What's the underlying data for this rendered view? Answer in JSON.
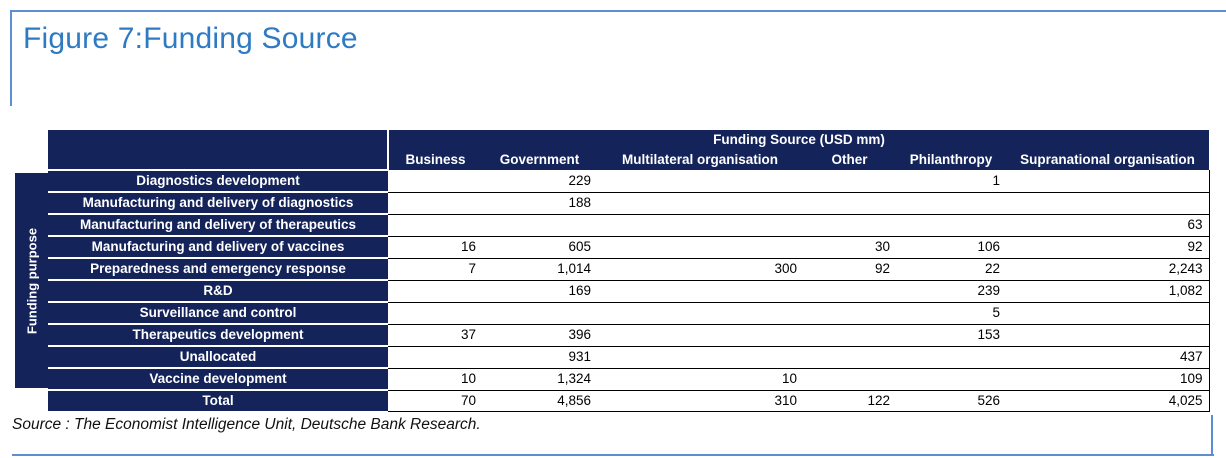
{
  "figure": {
    "title": "Figure 7:Funding Source"
  },
  "table": {
    "group_header": "Funding Source (USD mm)",
    "side_label": "Funding purpose",
    "columns": [
      "Business",
      "Government",
      "Multilateral organisation",
      "Other",
      "Philanthropy",
      "Supranational organisation"
    ],
    "rows": [
      {
        "label": "Diagnostics development",
        "values": [
          "",
          "229",
          "",
          "",
          "1",
          ""
        ]
      },
      {
        "label": "Manufacturing and delivery of diagnostics",
        "values": [
          "",
          "188",
          "",
          "",
          "",
          ""
        ]
      },
      {
        "label": "Manufacturing and delivery of therapeutics",
        "values": [
          "",
          "",
          "",
          "",
          "",
          "63"
        ]
      },
      {
        "label": "Manufacturing and delivery of vaccines",
        "values": [
          "16",
          "605",
          "",
          "30",
          "106",
          "92"
        ]
      },
      {
        "label": "Preparedness and emergency response",
        "values": [
          "7",
          "1,014",
          "300",
          "92",
          "22",
          "2,243"
        ]
      },
      {
        "label": "R&D",
        "values": [
          "",
          "169",
          "",
          "",
          "239",
          "1,082"
        ]
      },
      {
        "label": "Surveillance and control",
        "values": [
          "",
          "",
          "",
          "",
          "5",
          ""
        ]
      },
      {
        "label": "Therapeutics development",
        "values": [
          "37",
          "396",
          "",
          "",
          "153",
          ""
        ]
      },
      {
        "label": "Unallocated",
        "values": [
          "",
          "931",
          "",
          "",
          "",
          "437"
        ]
      },
      {
        "label": "Vaccine development",
        "values": [
          "10",
          "1,324",
          "10",
          "",
          "",
          "109"
        ]
      },
      {
        "label": "Total",
        "values": [
          "70",
          "4,856",
          "310",
          "122",
          "526",
          "4,025"
        ]
      }
    ]
  },
  "source": "Source : The Economist Intelligence Unit, Deutsche Bank Research."
}
